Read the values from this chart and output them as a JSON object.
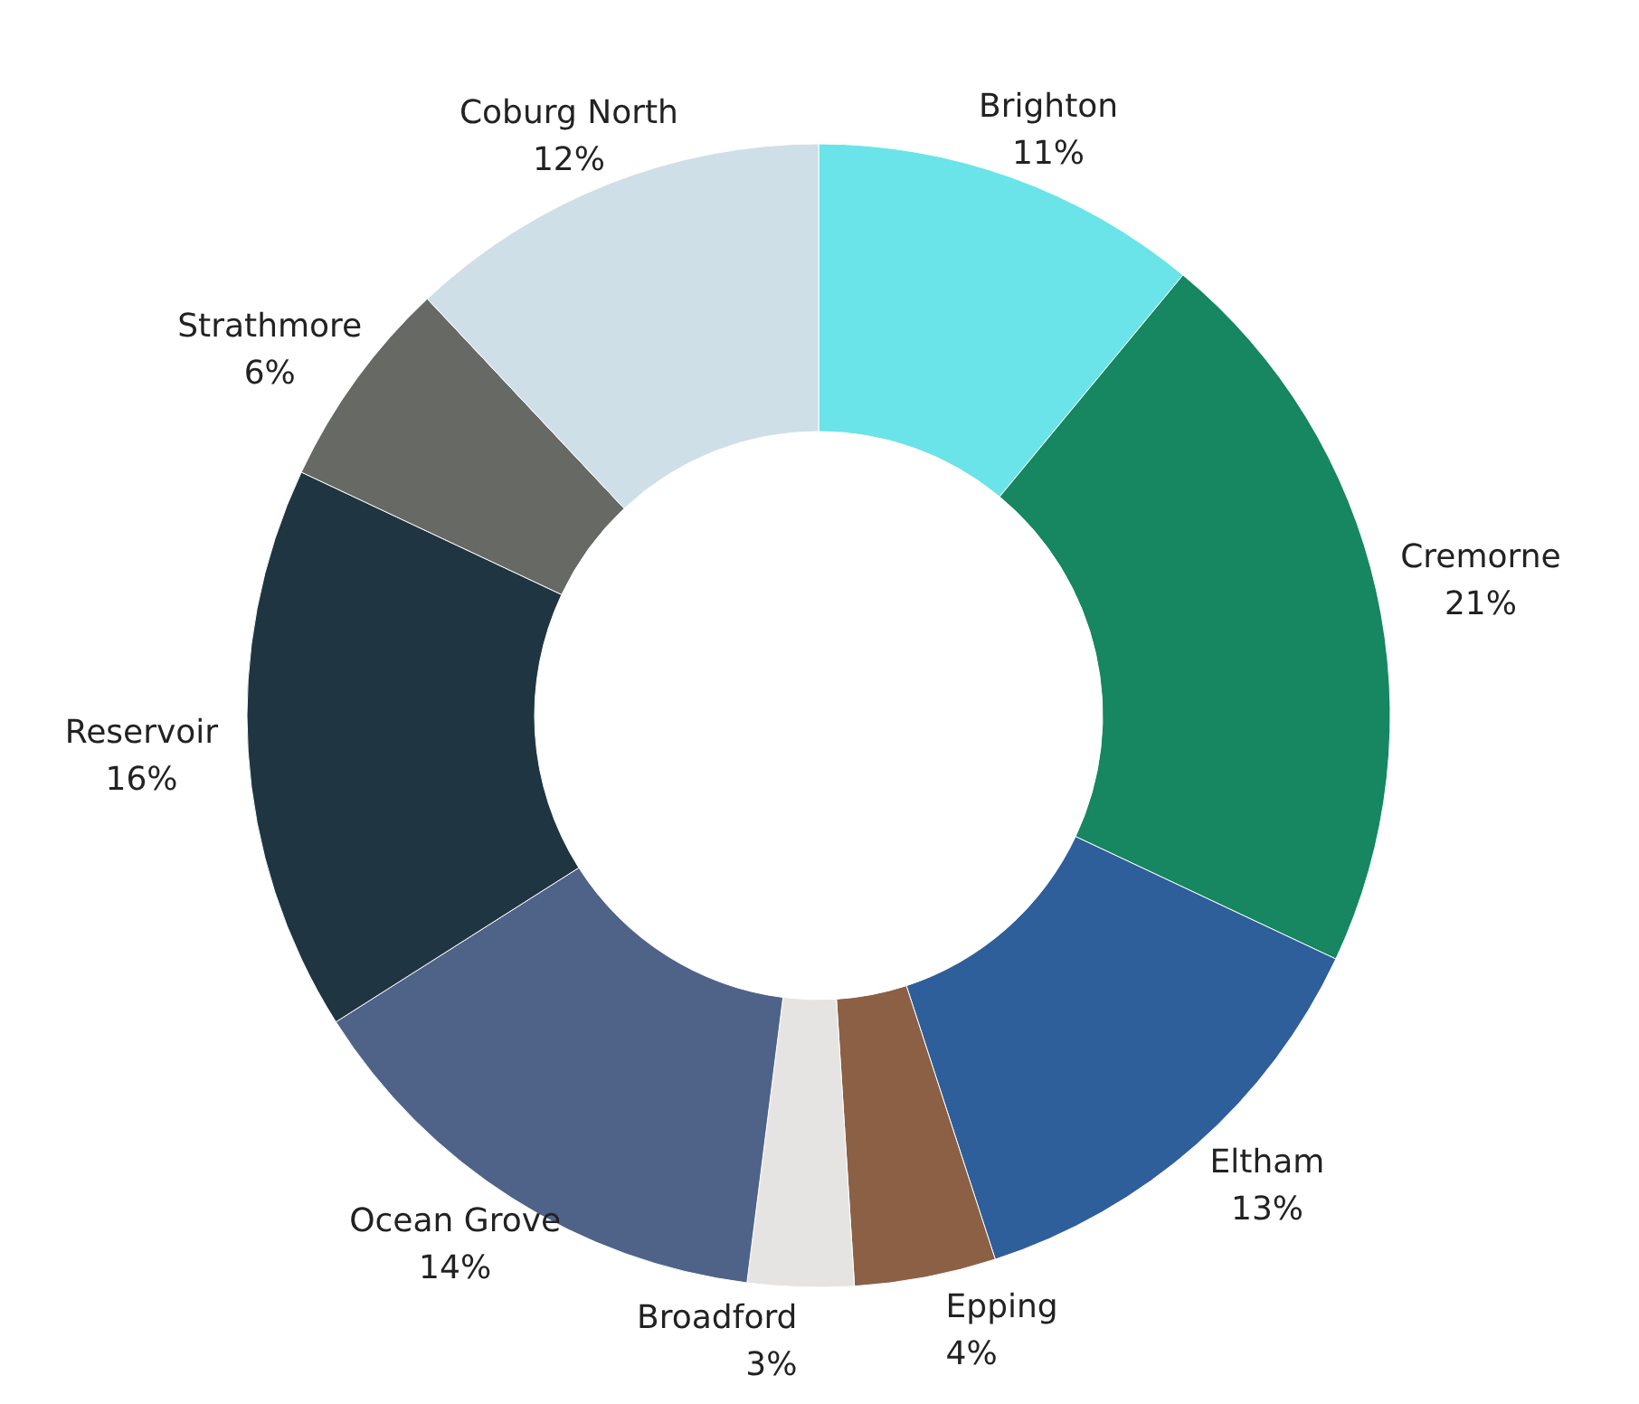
{
  "chart_data": {
    "type": "donut",
    "categories": [
      "Brighton",
      "Cremorne",
      "Eltham",
      "Epping",
      "Broadford",
      "Ocean Grove",
      "Reservoir",
      "Strathmore",
      "Coburg North"
    ],
    "values": [
      11,
      21,
      13,
      4,
      3,
      14,
      16,
      6,
      12
    ],
    "colors": [
      "#6ae4e8",
      "#168760",
      "#2e5f9a",
      "#8b6045",
      "#e6e4e2",
      "#4f6288",
      "#1f3542",
      "#676965",
      "#cfdfe8"
    ],
    "value_labels": [
      "11%",
      "21%",
      "13%",
      "4%",
      "3%",
      "14%",
      "16%",
      "6%",
      "12%"
    ]
  }
}
